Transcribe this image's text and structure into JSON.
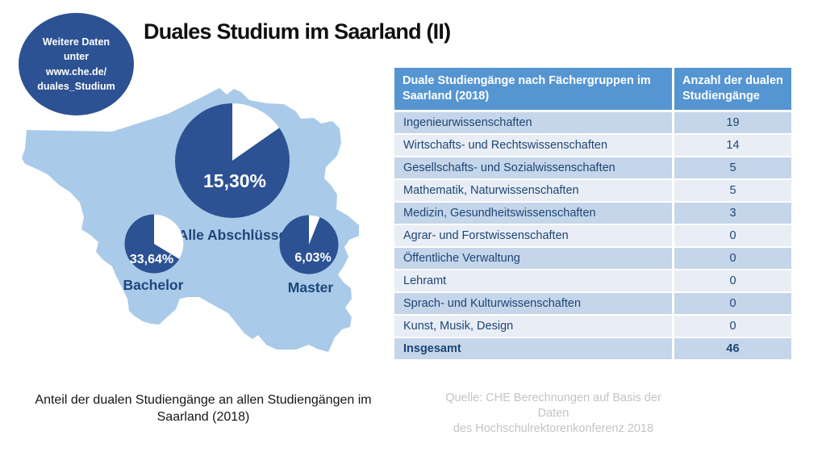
{
  "title": "Duales Studium im Saarland (II)",
  "badge": {
    "text": "Weitere Daten\nunter\nwww.che.de/\nduales_Studium",
    "color": "#2d5294"
  },
  "chart_data": {
    "type": "pie",
    "title": "Anteil der dualen Studiengänge an allen Studiengängen im Saarland (2018)",
    "legend_position": "below-each-pie",
    "colors": {
      "share_slice": "#ffffff",
      "remainder_slice": "#2d5294",
      "map_background": "#a9cbe9"
    },
    "pies": [
      {
        "name": "Alle Abschlüsse",
        "value_pct": 15.3,
        "label_value": "15,30%"
      },
      {
        "name": "Bachelor",
        "value_pct": 33.64,
        "label_value": "33,64%"
      },
      {
        "name": "Master",
        "value_pct": 6.03,
        "label_value": "6,03%"
      }
    ]
  },
  "table": {
    "headers": [
      "Duale Studiengänge nach Fächergruppen im Saarland (2018)",
      "Anzahl der dualen Studiengänge"
    ],
    "header_color": "#5596d2",
    "row_colors": [
      "#c6d6ea",
      "#e9eef6"
    ],
    "rows": [
      {
        "label": "Ingenieurwissenschaften",
        "value": "19"
      },
      {
        "label": "Wirtschafts- und Rechtswissenschaften",
        "value": "14"
      },
      {
        "label": "Gesellschafts- und Sozialwissenschaften",
        "value": "5"
      },
      {
        "label": "Mathematik, Naturwissenschaften",
        "value": "5"
      },
      {
        "label": "Medizin, Gesundheitswissenschaften",
        "value": "3"
      },
      {
        "label": "Agrar- und Forstwissenschaften",
        "value": "0"
      },
      {
        "label": "Öffentliche Verwaltung",
        "value": "0"
      },
      {
        "label": "Lehramt",
        "value": "0"
      },
      {
        "label": "Sprach- und Kulturwissenschaften",
        "value": "0"
      },
      {
        "label": "Kunst, Musik, Design",
        "value": "0"
      },
      {
        "label": "Insgesamt",
        "value": "46"
      }
    ]
  },
  "caption": "Anteil der dualen Studiengänge an allen Studiengängen im Saarland (2018)",
  "source": "Quelle: CHE Berechnungen auf Basis der Daten\ndes Hochschulrektorenkonferenz 2018"
}
